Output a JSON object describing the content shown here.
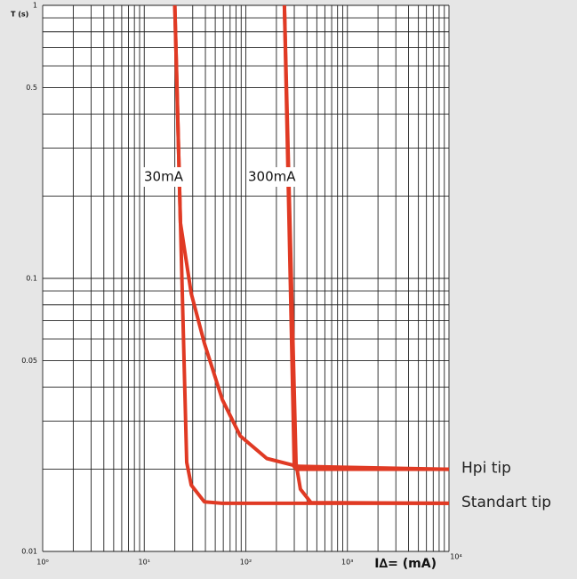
{
  "chart_data": {
    "type": "line",
    "ylabel": "T (s)",
    "xlabel": "I∆= (mA)",
    "log_x": true,
    "log_y": true,
    "grid": true,
    "xlim": [
      1,
      10000
    ],
    "ylim": [
      0.01,
      1
    ],
    "xticks": [
      {
        "value": 1,
        "label": "10⁰"
      },
      {
        "value": 10,
        "label": "10¹"
      },
      {
        "value": 100,
        "label": "10²"
      },
      {
        "value": 1000,
        "label": "10³"
      },
      {
        "value": 10000,
        "label": "10⁴"
      }
    ],
    "yticks": [
      1,
      0.5,
      0.1,
      0.05,
      0.01
    ],
    "xgrid": [
      2,
      3,
      4,
      5,
      6,
      7,
      8,
      9,
      20,
      30,
      40,
      50,
      60,
      70,
      80,
      90,
      200,
      300,
      400,
      500,
      600,
      700,
      800,
      900,
      2000,
      3000,
      4000,
      5000,
      6000,
      7000,
      8000,
      9000
    ],
    "ygrid": [
      0.9,
      0.8,
      0.7,
      0.6,
      0.4,
      0.3,
      0.2,
      0.09,
      0.08,
      0.07,
      0.06,
      0.04,
      0.03,
      0.02
    ],
    "annotations": [
      "30mA",
      "300mA"
    ],
    "series": [
      {
        "name": "Hpi tip",
        "color": "#e03a24",
        "curves": [
          {
            "x": [
              20,
              21,
              22.7,
              29,
              39,
              58.6,
              88,
              161,
              324,
              10000
            ],
            "y": [
              1,
              0.5,
              0.16,
              0.088,
              0.058,
              0.036,
              0.0265,
              0.0219,
              0.0205,
              0.02
            ]
          },
          {
            "x": [
              240,
              300,
              315,
              10000
            ],
            "y": [
              1,
              0.0204,
              0.02,
              0.02
            ]
          }
        ]
      },
      {
        "name": "Standart tip",
        "color": "#e03a24",
        "curves": [
          {
            "x": [
              20,
              26.2,
              29,
              39,
              58.6,
              10000
            ],
            "y": [
              1,
              0.0212,
              0.0175,
              0.0152,
              0.015,
              0.015
            ]
          },
          {
            "x": [
              240,
              312,
              345,
              438,
              10000
            ],
            "y": [
              1,
              0.021,
              0.0169,
              0.0151,
              0.015
            ]
          }
        ]
      }
    ]
  }
}
